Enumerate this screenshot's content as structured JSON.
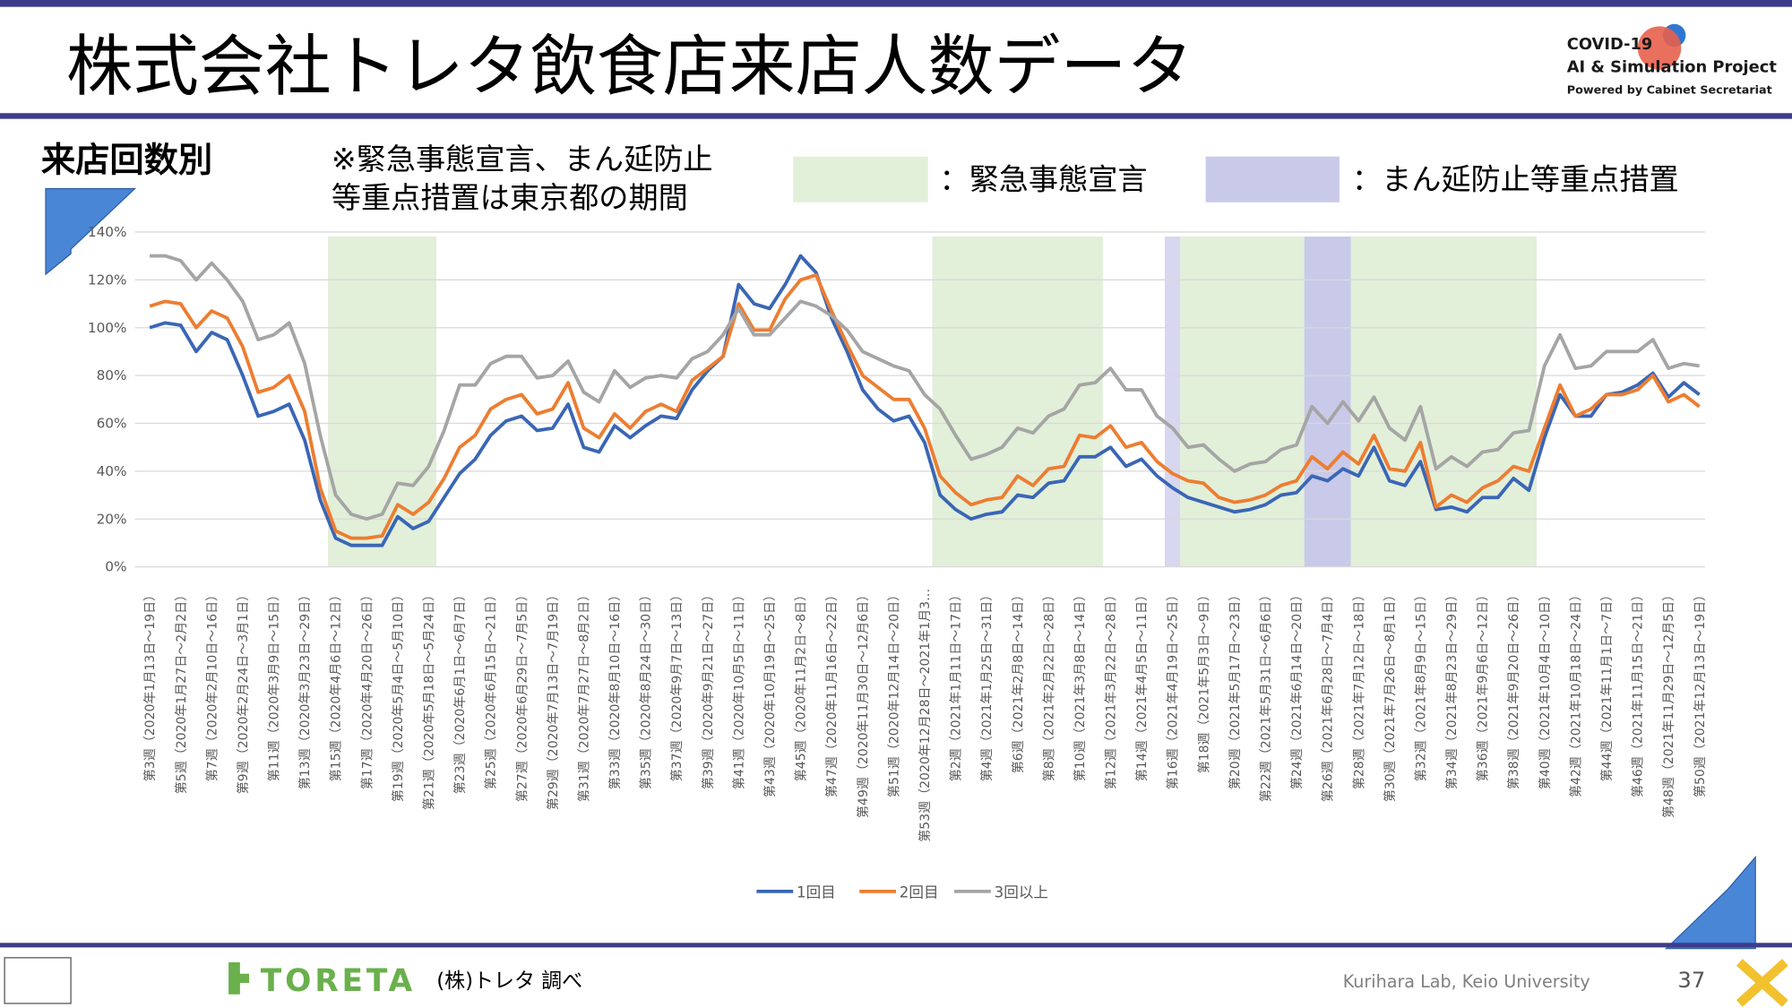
{
  "header": {
    "title": "株式会社トレタ飲食店来店人数データ"
  },
  "logo": {
    "line1": "COVID-19",
    "line2": "AI & Simulation Project",
    "line3": "Powered by Cabinet Secretariat"
  },
  "chart_data": {
    "type": "line",
    "subtitle": "来店回数別",
    "note": [
      "※緊急事態宣言、まん延防止",
      "等重点措置は東京都の期間"
    ],
    "span_legend": [
      {
        "label": "：緊急事態宣言",
        "color": "#e2efd9"
      },
      {
        "label": "：まん延防止等重点措置",
        "color": "#c9c9e9"
      }
    ],
    "spans": [
      {
        "from": 11.5,
        "to": 18.5,
        "color": "#e2efd9"
      },
      {
        "from": 50.5,
        "to": 61.5,
        "color": "#e2efd9"
      },
      {
        "from": 65.5,
        "to": 66.5,
        "color": "#d7d7f0"
      },
      {
        "from": 66.5,
        "to": 74.5,
        "color": "#e2efd9"
      },
      {
        "from": 74.5,
        "to": 77.5,
        "color": "#c9c9e9"
      },
      {
        "from": 77.5,
        "to": 89.5,
        "color": "#e2efd9"
      }
    ],
    "categories": [
      "第3週（2020年1月13日～19日）",
      null,
      "第5週（2020年1月27日～2月2日）",
      null,
      "第7週（2020年2月10日～16日）",
      null,
      "第9週（2020年2月24日～3月1日）",
      null,
      "第11週（2020年3月9日～15日）",
      null,
      "第13週（2020年3月23日～29日）",
      null,
      "第15週（2020年4月6日～12日）",
      null,
      "第17週（2020年4月20日～26日）",
      null,
      "第19週（2020年5月4日～5月10日）",
      null,
      "第21週（2020年5月18日～5月24日）",
      null,
      "第23週（2020年6月1日～6月7日）",
      null,
      "第25週（2020年6月15日～21日）",
      null,
      "第27週（2020年6月29日～7月5日）",
      null,
      "第29週（2020年7月13日～7月19日）",
      null,
      "第31週（2020年7月27日～8月2日）",
      null,
      "第33週（2020年8月10日～16日）",
      null,
      "第35週（2020年8月24日～30日）",
      null,
      "第37週（2020年9月7日～13日）",
      null,
      "第39週（2020年9月21日～27日）",
      null,
      "第41週（2020年10月5日～11日）",
      null,
      "第43週（2020年10月19日～25日）",
      null,
      "第45週（2020年11月2日～8日）",
      null,
      "第47週（2020年11月16日～22日）",
      null,
      "第49週（2020年11月30日～12月6日）",
      null,
      "第51週（2020年12月14日～20日）",
      null,
      "第53週（2020年12月28日～2021年1月3…",
      null,
      "第2週（2021年1月11日～17日）",
      null,
      "第4週（2021年1月25日～31日）",
      null,
      "第6週（2021年2月8日～14日）",
      null,
      "第8週（2021年2月22日～28日）",
      null,
      "第10週（2021年3月8日～14日）",
      null,
      "第12週（2021年3月22日～28日）",
      null,
      "第14週（2021年4月5日～11日）",
      null,
      "第16週（2021年4月19日～25日）",
      null,
      "第18週（2021年5月3日～9日）",
      null,
      "第20週（2021年5月17日～23日）",
      null,
      "第22週（2021年5月31日～6月6日）",
      null,
      "第24週（2021年6月14日～20日）",
      null,
      "第26週（2021年6月28日～7月4日）",
      null,
      "第28週（2021年7月12日～18日）",
      null,
      "第30週（2021年7月26日～8月1日）",
      null,
      "第32週（2021年8月9日～15日）",
      null,
      "第34週（2021年8月23日～29日）",
      null,
      "第36週（2021年9月6日～12日）",
      null,
      "第38週（2021年9月20日～26日）",
      null,
      "第40週（2021年10月4日～10日）",
      null,
      "第42週（2021年10月18日～24日）",
      null,
      "第44週（2021年11月1日～7日）",
      null,
      "第46週（2021年11月15日～21日）",
      null,
      "第48週（2021年11月29日～12月5日）",
      null,
      "第50週（2021年12月13日～19日）"
    ],
    "series": [
      {
        "name": "1回目",
        "color": "#3a66b5",
        "values": [
          100,
          102,
          101,
          90,
          98,
          95,
          80,
          63,
          65,
          68,
          53,
          28,
          12,
          9,
          9,
          9,
          21,
          16,
          19,
          29,
          39,
          45,
          55,
          61,
          63,
          57,
          58,
          68,
          50,
          48,
          59,
          54,
          59,
          63,
          62,
          74,
          82,
          88,
          118,
          110,
          108,
          118,
          130,
          123,
          104,
          90,
          74,
          66,
          61,
          63,
          52,
          30,
          24,
          20,
          22,
          23,
          30,
          29,
          35,
          36,
          46,
          46,
          50,
          42,
          45,
          38,
          33,
          29,
          27,
          25,
          23,
          24,
          26,
          30,
          31,
          38,
          36,
          41,
          38,
          50,
          36,
          34,
          44,
          24,
          25,
          23,
          29,
          29,
          37,
          32,
          54,
          72,
          63,
          63,
          72,
          73,
          76,
          81,
          71,
          77,
          72
        ]
      },
      {
        "name": "2回目",
        "color": "#ed7d31",
        "values": [
          109,
          111,
          110,
          100,
          107,
          104,
          92,
          73,
          75,
          80,
          65,
          33,
          15,
          12,
          12,
          13,
          26,
          22,
          27,
          37,
          50,
          55,
          66,
          70,
          72,
          64,
          66,
          77,
          58,
          54,
          64,
          58,
          65,
          68,
          65,
          78,
          83,
          88,
          110,
          99,
          99,
          112,
          120,
          122,
          107,
          93,
          80,
          75,
          70,
          70,
          58,
          38,
          31,
          26,
          28,
          29,
          38,
          34,
          41,
          42,
          55,
          54,
          59,
          50,
          52,
          44,
          39,
          36,
          35,
          29,
          27,
          28,
          30,
          34,
          36,
          46,
          41,
          48,
          43,
          55,
          41,
          40,
          52,
          25,
          30,
          27,
          33,
          36,
          42,
          40,
          58,
          76,
          63,
          66,
          72,
          72,
          74,
          80,
          69,
          72,
          67
        ]
      },
      {
        "name": "3回以上",
        "color": "#a5a5a5",
        "values": [
          130,
          130,
          128,
          120,
          127,
          120,
          111,
          95,
          97,
          102,
          85,
          55,
          30,
          22,
          20,
          22,
          35,
          34,
          42,
          57,
          76,
          76,
          85,
          88,
          88,
          79,
          80,
          86,
          73,
          69,
          82,
          75,
          79,
          80,
          79,
          87,
          90,
          97,
          108,
          97,
          97,
          104,
          111,
          109,
          105,
          99,
          90,
          87,
          84,
          82,
          72,
          66,
          55,
          45,
          47,
          50,
          58,
          56,
          63,
          66,
          76,
          77,
          83,
          74,
          74,
          63,
          58,
          50,
          51,
          45,
          40,
          43,
          44,
          49,
          51,
          67,
          60,
          69,
          61,
          71,
          58,
          53,
          67,
          41,
          46,
          42,
          48,
          49,
          56,
          57,
          84,
          97,
          83,
          84,
          90,
          90,
          90,
          95,
          83,
          85,
          84
        ]
      }
    ],
    "ylim": [
      0,
      140
    ],
    "yticks": [
      {
        "value": 0,
        "label": "0%"
      },
      {
        "value": 20,
        "label": "20%"
      },
      {
        "value": 40,
        "label": "40%"
      },
      {
        "value": 60,
        "label": "60%"
      },
      {
        "value": 80,
        "label": "80%"
      },
      {
        "value": 100,
        "label": "100%"
      },
      {
        "value": 120,
        "label": "120%"
      },
      {
        "value": 140,
        "label": "140%"
      }
    ],
    "grid": true
  },
  "footer": {
    "brand": "TORETA",
    "source": "(株)トレタ 調べ",
    "lab": "Kurihara Lab, Keio University",
    "page": "37"
  }
}
